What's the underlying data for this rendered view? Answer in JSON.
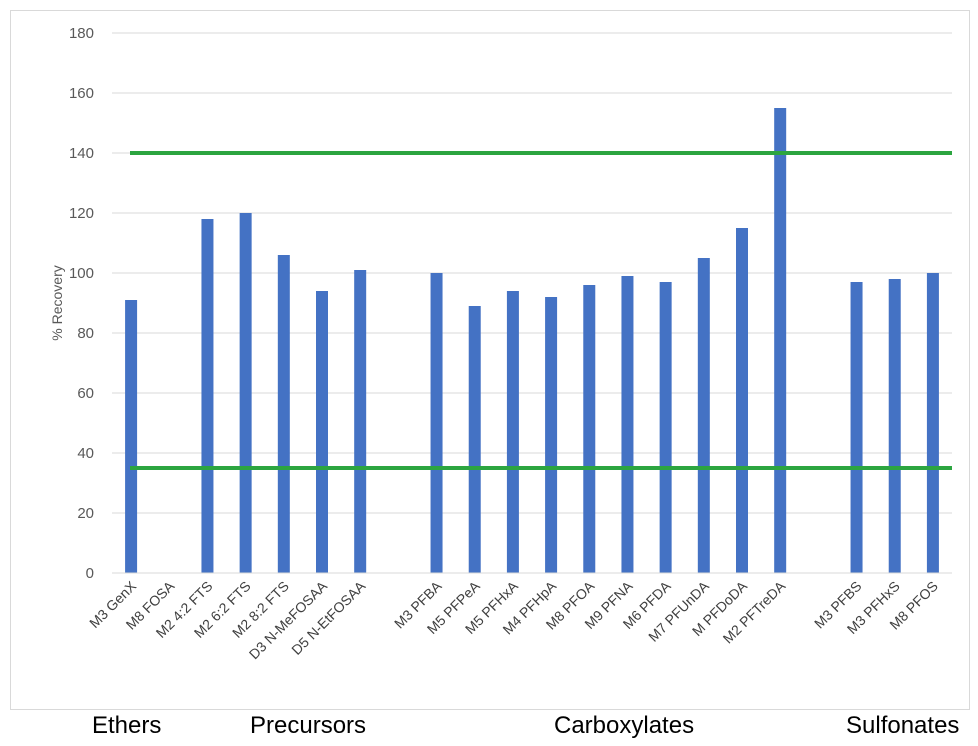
{
  "chart_data": {
    "type": "bar",
    "ylabel": "% Recovery",
    "ylim": [
      0,
      180
    ],
    "yticks": [
      0,
      20,
      40,
      60,
      80,
      100,
      120,
      140,
      160,
      180
    ],
    "grid": true,
    "categories": [
      "M3 GenX",
      "M8 FOSA",
      "M2 4:2 FTS",
      "M2 6:2 FTS",
      "M2 8:2 FTS",
      "D3 N-MeFOSAA",
      "D5 N-EtFOSAA",
      "",
      "M3 PFBA",
      "M5 PFPeA",
      "M5 PFHxA",
      "M4 PFHpA",
      "M8 PFOA",
      "M9 PFNA",
      "M6 PFDA",
      "M7 PFUnDA",
      "M PFDoDA",
      "M2 PFTreDA",
      "",
      "M3 PFBS",
      "M3 PFHxS",
      "M8 PFOS"
    ],
    "values": [
      91,
      null,
      118,
      120,
      106,
      94,
      101,
      null,
      100,
      89,
      94,
      92,
      96,
      99,
      97,
      105,
      115,
      155,
      null,
      97,
      98,
      100
    ],
    "bar_color": "#4472c4",
    "reference_lines": [
      {
        "value": 140,
        "color": "#2ca540"
      },
      {
        "value": 35,
        "color": "#2ca540"
      }
    ]
  },
  "groups": {
    "ethers": "Ethers",
    "precursors": "Precursors",
    "carboxylates": "Carboxylates",
    "sulfonates": "Sulfonates"
  }
}
